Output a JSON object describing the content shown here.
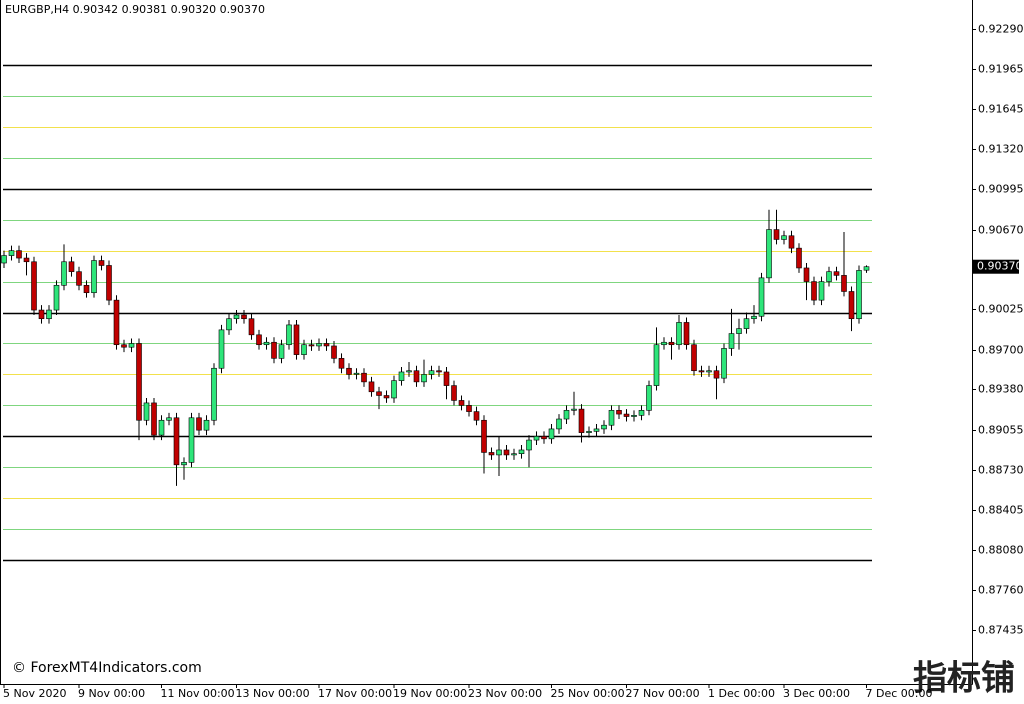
{
  "chart_data": {
    "type": "candlestick",
    "title": "EURGBP,H4  0.90342 0.90381 0.90320 0.90370",
    "watermark": "© ForexMT4Indicators.com",
    "brand": "指标铺",
    "up_color": "#2ee57a",
    "down_color": "#c00000",
    "ylim": [
      0.87,
      0.92524
    ],
    "yticks": [
      {
        "value": 0.9229,
        "label": "0.92290"
      },
      0.91965,
      0.91645,
      {
        "value": 0.9132,
        "label": "0.91320"
      },
      0.90995,
      {
        "value": 0.9067,
        "label": "0.90670"
      },
      0.90025,
      {
        "value": 0.897,
        "label": "0.89700"
      },
      {
        "value": 0.8938,
        "label": "0.89380"
      },
      0.89055,
      {
        "value": 0.8873,
        "label": "0.88730"
      },
      0.88405,
      {
        "value": 0.8808,
        "label": "0.88080"
      },
      {
        "value": 0.8776,
        "label": "0.87760"
      },
      0.87435
    ],
    "last_price": {
      "value": 0.9037,
      "label": "0.90370"
    },
    "levels": [
      {
        "value": 0.92,
        "color": "#000000"
      },
      {
        "value": 0.9175,
        "color": "#7fd67f"
      },
      {
        "value": 0.915,
        "color": "#f2e14c"
      },
      {
        "value": 0.9125,
        "color": "#7fd67f"
      },
      {
        "value": 0.91,
        "color": "#000000"
      },
      {
        "value": 0.9075,
        "color": "#7fd67f"
      },
      {
        "value": 0.905,
        "color": "#f2e14c"
      },
      {
        "value": 0.9025,
        "color": "#7fd67f"
      },
      {
        "value": 0.9,
        "color": "#000000"
      },
      {
        "value": 0.8975,
        "color": "#7fd67f"
      },
      {
        "value": 0.895,
        "color": "#f2e14c"
      },
      {
        "value": 0.8925,
        "color": "#7fd67f"
      },
      {
        "value": 0.89,
        "color": "#000000"
      },
      {
        "value": 0.8875,
        "color": "#7fd67f"
      },
      {
        "value": 0.885,
        "color": "#f2e14c"
      },
      {
        "value": 0.8825,
        "color": "#7fd67f"
      },
      {
        "value": 0.88,
        "color": "#000000"
      }
    ],
    "categories": [
      "5 Nov 2020",
      null,
      null,
      null,
      null,
      null,
      null,
      null,
      null,
      null,
      "9 Nov 00:00",
      null,
      null,
      null,
      null,
      null,
      null,
      null,
      null,
      null,
      null,
      "11 Nov 00:00",
      null,
      null,
      null,
      null,
      null,
      null,
      null,
      null,
      null,
      "13 Nov 00:00",
      null,
      null,
      null,
      null,
      null,
      null,
      null,
      null,
      null,
      null,
      "17 Nov 00:00",
      null,
      null,
      null,
      null,
      null,
      null,
      null,
      null,
      null,
      "19 Nov 00:00",
      null,
      null,
      null,
      null,
      null,
      null,
      null,
      null,
      null,
      "23 Nov 00:00",
      null,
      null,
      null,
      null,
      null,
      null,
      null,
      null,
      null,
      null,
      "25 Nov 00:00",
      null,
      null,
      null,
      null,
      null,
      null,
      null,
      null,
      null,
      "27 Nov 00:00",
      null,
      null,
      null,
      null,
      null,
      null,
      null,
      null,
      null,
      null,
      "1 Dec 00:00",
      null,
      null,
      null,
      null,
      null,
      null,
      null,
      null,
      null,
      "3 Dec 00:00",
      null,
      null,
      null,
      null,
      null,
      null,
      null,
      null,
      null,
      null,
      "7 Dec 00:00"
    ],
    "open": [
      0.904,
      0.9046,
      0.905,
      0.9044,
      0.9041,
      0.9002,
      0.8995,
      0.9002,
      0.9022,
      0.9041,
      0.9033,
      0.9022,
      0.9016,
      0.9042,
      0.9038,
      0.901,
      0.8974,
      0.8972,
      0.8975,
      0.8913,
      0.8927,
      0.8901,
      0.8913,
      0.8915,
      0.8877,
      0.8879,
      0.8915,
      0.8905,
      0.8913,
      0.8955,
      0.8986,
      0.8995,
      0.8998,
      0.8995,
      0.8982,
      0.8974,
      0.8976,
      0.8963,
      0.8974,
      0.899,
      0.8966,
      0.8974,
      0.8973,
      0.8975,
      0.8973,
      0.8963,
      0.8955,
      0.895,
      0.8951,
      0.8944,
      0.8936,
      0.8933,
      0.8931,
      0.8945,
      0.8952,
      0.8953,
      0.8944,
      0.895,
      0.8953,
      0.8952,
      0.8941,
      0.8929,
      0.8925,
      0.892,
      0.8913,
      0.8887,
      0.8885,
      0.8889,
      0.8885,
      0.8886,
      0.8889,
      0.8897,
      0.89,
      0.8898,
      0.8906,
      0.8914,
      0.8921,
      0.8922,
      0.8903,
      0.8904,
      0.8906,
      0.8909,
      0.8921,
      0.8918,
      0.8916,
      0.8917,
      0.8921,
      0.8941,
      0.8974,
      0.8976,
      0.8974,
      0.8992,
      0.8974,
      0.8953,
      0.8952,
      0.8953,
      0.8947,
      0.8971,
      0.8983,
      0.8987,
      0.8995,
      0.8997,
      0.9028,
      0.9067,
      0.9059,
      0.9062,
      0.9052,
      0.9036,
      0.9025,
      0.901,
      0.9025,
      0.9033,
      0.903,
      0.9017,
      0.8995,
      0.90342
    ],
    "high": [
      0.905,
      0.9054,
      0.9054,
      0.9048,
      0.9045,
      0.9006,
      0.9006,
      0.9026,
      0.9055,
      0.9045,
      0.9037,
      0.9026,
      0.9046,
      0.9046,
      0.9042,
      0.9014,
      0.8978,
      0.8979,
      0.8979,
      0.8931,
      0.8931,
      0.8917,
      0.8919,
      0.8919,
      0.8883,
      0.8919,
      0.8919,
      0.8917,
      0.8959,
      0.899,
      0.8999,
      0.9002,
      0.9002,
      0.8999,
      0.8986,
      0.898,
      0.898,
      0.8978,
      0.8994,
      0.8994,
      0.8978,
      0.8978,
      0.8979,
      0.8979,
      0.8977,
      0.8967,
      0.8959,
      0.8955,
      0.8955,
      0.8948,
      0.894,
      0.8937,
      0.8949,
      0.8956,
      0.896,
      0.8957,
      0.8962,
      0.8957,
      0.8957,
      0.8956,
      0.8945,
      0.8933,
      0.8929,
      0.8924,
      0.8917,
      0.8891,
      0.89,
      0.8893,
      0.889,
      0.8893,
      0.8901,
      0.8904,
      0.8904,
      0.891,
      0.8918,
      0.8925,
      0.8936,
      0.8926,
      0.8908,
      0.891,
      0.8913,
      0.8925,
      0.8925,
      0.8922,
      0.8921,
      0.8925,
      0.8945,
      0.8988,
      0.898,
      0.898,
      0.8998,
      0.8996,
      0.8978,
      0.8957,
      0.8957,
      0.8957,
      0.8975,
      0.9003,
      0.8995,
      0.9,
      0.9006,
      0.9032,
      0.9083,
      0.9083,
      0.9066,
      0.9066,
      0.9056,
      0.904,
      0.9029,
      0.9029,
      0.9037,
      0.9037,
      0.9065,
      0.9021,
      0.9038,
      0.90381
    ],
    "low": [
      0.9036,
      0.9042,
      0.904,
      0.903,
      0.8998,
      0.8991,
      0.8991,
      0.8998,
      0.9018,
      0.9029,
      0.9018,
      0.9012,
      0.9012,
      0.9034,
      0.9006,
      0.897,
      0.8968,
      0.8968,
      0.8897,
      0.8909,
      0.8897,
      0.8897,
      0.8909,
      0.886,
      0.8865,
      0.8875,
      0.8901,
      0.8901,
      0.8909,
      0.8951,
      0.8982,
      0.8991,
      0.8991,
      0.8978,
      0.897,
      0.897,
      0.8959,
      0.8959,
      0.897,
      0.8962,
      0.8962,
      0.8969,
      0.8969,
      0.8969,
      0.8959,
      0.8951,
      0.8946,
      0.8946,
      0.894,
      0.8932,
      0.8922,
      0.8927,
      0.8927,
      0.8941,
      0.8948,
      0.894,
      0.894,
      0.8946,
      0.8948,
      0.893,
      0.8925,
      0.8921,
      0.8916,
      0.8909,
      0.887,
      0.8881,
      0.8868,
      0.8881,
      0.8881,
      0.8882,
      0.8875,
      0.8893,
      0.8894,
      0.8894,
      0.8902,
      0.891,
      0.8917,
      0.8895,
      0.8899,
      0.89,
      0.8902,
      0.8905,
      0.8914,
      0.8912,
      0.8912,
      0.8913,
      0.8917,
      0.8937,
      0.897,
      0.8962,
      0.897,
      0.897,
      0.8949,
      0.8948,
      0.8948,
      0.893,
      0.8943,
      0.8965,
      0.897,
      0.8983,
      0.8991,
      0.8993,
      0.9024,
      0.9055,
      0.9055,
      0.9048,
      0.9032,
      0.901,
      0.9006,
      0.9006,
      0.9021,
      0.9026,
      0.9013,
      0.8985,
      0.8991,
      0.9032
    ],
    "close": [
      0.9046,
      0.905,
      0.9044,
      0.9041,
      0.9002,
      0.8995,
      0.9002,
      0.9022,
      0.9041,
      0.9033,
      0.9022,
      0.9016,
      0.9042,
      0.9038,
      0.901,
      0.8974,
      0.8972,
      0.8975,
      0.8913,
      0.8927,
      0.8901,
      0.8913,
      0.8915,
      0.8877,
      0.8879,
      0.8915,
      0.8905,
      0.8913,
      0.8955,
      0.8986,
      0.8995,
      0.8998,
      0.8995,
      0.8982,
      0.8974,
      0.8976,
      0.8963,
      0.8974,
      0.899,
      0.8966,
      0.8974,
      0.8973,
      0.8975,
      0.8973,
      0.8963,
      0.8955,
      0.895,
      0.8951,
      0.8944,
      0.8936,
      0.8933,
      0.8931,
      0.8945,
      0.8952,
      0.8953,
      0.8944,
      0.895,
      0.8953,
      0.8952,
      0.8941,
      0.8929,
      0.8925,
      0.892,
      0.8913,
      0.8887,
      0.8885,
      0.8889,
      0.8885,
      0.8886,
      0.8889,
      0.8897,
      0.89,
      0.8898,
      0.8906,
      0.8914,
      0.8921,
      0.8922,
      0.8903,
      0.8904,
      0.8906,
      0.8909,
      0.8921,
      0.8918,
      0.8916,
      0.8917,
      0.8921,
      0.8941,
      0.8974,
      0.8976,
      0.8974,
      0.8992,
      0.8974,
      0.8953,
      0.8952,
      0.8953,
      0.8947,
      0.8971,
      0.8983,
      0.8987,
      0.8995,
      0.8997,
      0.9028,
      0.9067,
      0.9059,
      0.9062,
      0.9052,
      0.9036,
      0.9025,
      0.901,
      0.9025,
      0.9033,
      0.903,
      0.9017,
      0.8995,
      0.9034,
      0.9037
    ]
  }
}
